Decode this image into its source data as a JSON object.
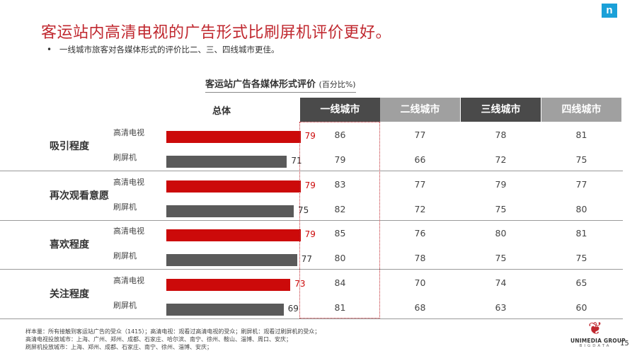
{
  "header": {
    "logo_letter": "n",
    "title": "客运站内高清电视的广告形式比刷屏机评价更好。",
    "bullet_symbol": "•",
    "bullet": "一线城市旅客对各媒体形式的评价比二、三、四线城市更佳。"
  },
  "chart_data": {
    "type": "bar",
    "title": "客运站广告各媒体形式评价",
    "unit": "(百分比%)",
    "overall_label": "总体",
    "groups": [
      "吸引程度",
      "再次观看意愿",
      "喜欢程度",
      "关注程度"
    ],
    "series": [
      {
        "name": "高清电视",
        "color": "#cc0a0a",
        "values": [
          79,
          79,
          79,
          73
        ]
      },
      {
        "name": "刷屏机",
        "color": "#5a5a5a",
        "values": [
          71,
          75,
          77,
          69
        ]
      }
    ],
    "xlim": [
      0,
      100
    ],
    "city_columns": [
      {
        "label": "一线城市",
        "color": "#4a4a4a",
        "values": [
          [
            86,
            79
          ],
          [
            83,
            82
          ],
          [
            85,
            80
          ],
          [
            84,
            81
          ]
        ]
      },
      {
        "label": "二线城市",
        "color": "#a0a0a0",
        "values": [
          [
            77,
            66
          ],
          [
            77,
            72
          ],
          [
            76,
            78
          ],
          [
            70,
            68
          ]
        ]
      },
      {
        "label": "三线城市",
        "color": "#4a4a4a",
        "values": [
          [
            78,
            72
          ],
          [
            79,
            75
          ],
          [
            80,
            75
          ],
          [
            74,
            63
          ]
        ]
      },
      {
        "label": "四线城市",
        "color": "#a0a0a0",
        "values": [
          [
            81,
            75
          ],
          [
            77,
            80
          ],
          [
            81,
            75
          ],
          [
            65,
            60
          ]
        ]
      }
    ]
  },
  "footnote": [
    "样本量：所有接触到客运站广告的受众（1415）；高清电视：观看过高清电视的受众；刷屏机：观看过刷屏机的受众；",
    "高清电视投放城市：上海、广州、郑州、成都、石家庄、哈尔滨、南宁、徐州、鞍山、淄博、周口、安庆；",
    "刷屏机投放城市：上海、郑州、成都、石家庄、南宁、徐州、淄博、安庆；"
  ],
  "brand": {
    "name": "UNIMEDIA GROUP",
    "sub": "BIGDATA",
    "page": "15"
  }
}
